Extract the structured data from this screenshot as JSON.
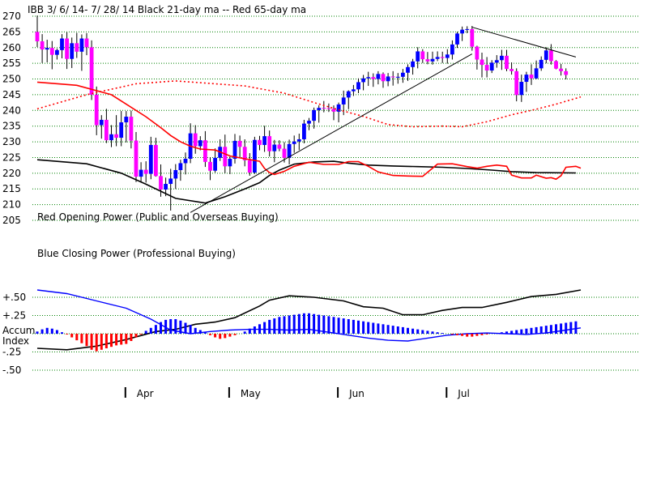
{
  "chart_data": {
    "type": "candlestick",
    "title": "IBB   3/ 6/ 14- 7/ 28/ 14     Black 21-day ma --  Red 65-day ma",
    "price_axis": {
      "ylim": [
        205,
        270
      ],
      "ticks": [
        "270",
        "265",
        "260",
        "255",
        "250",
        "245",
        "240",
        "235",
        "230",
        "225",
        "220",
        "215",
        "210",
        "205"
      ],
      "grid": true
    },
    "indicator_axis": {
      "ticks": [
        {
          "label": "+.50",
          "value": 0.5
        },
        {
          "label": "+.25",
          "value": 0.25
        },
        {
          "label": "-.25",
          "value": -0.25
        },
        {
          "label": "-.50",
          "value": -0.5
        }
      ],
      "zero_label_1": "Accum",
      "zero_label_2": "Index"
    },
    "x_axis": {
      "months": [
        "Apr",
        "May",
        "Jun",
        "Jul"
      ],
      "month_start_index": [
        18,
        39,
        61,
        83
      ]
    },
    "annotations": {
      "red_power": "Red Opening Power (Public and Overseas Buying)",
      "blue_power": "Blue Closing Power (Professional Buying)"
    },
    "colors": {
      "up": "#0000ff",
      "down": "#ff00ff",
      "ma21": "#000000",
      "ma65": "#ff0000",
      "acc_pos": "#0000ff",
      "acc_neg": "#ff0000",
      "grid": "#008000"
    },
    "ohlc": [
      [
        265.0,
        270.2,
        260.2,
        262.0
      ],
      [
        262.0,
        264.3,
        255.1,
        259.4
      ],
      [
        259.4,
        262.5,
        255.3,
        259.9
      ],
      [
        259.9,
        262.1,
        253.1,
        257.7
      ],
      [
        257.7,
        259.7,
        256.2,
        259.2
      ],
      [
        259.2,
        264.3,
        256.6,
        262.9
      ],
      [
        262.9,
        264.9,
        253.2,
        256.4
      ],
      [
        256.4,
        263.2,
        253.5,
        261.4
      ],
      [
        261.4,
        264.7,
        256.7,
        258.7
      ],
      [
        258.7,
        264.2,
        252.6,
        262.9
      ],
      [
        262.9,
        264.6,
        257.6,
        260.1
      ],
      [
        260.1,
        262.3,
        243.3,
        245.0
      ],
      [
        245.0,
        247.6,
        232.1,
        235.3
      ],
      [
        235.3,
        238.5,
        231.0,
        237.0
      ],
      [
        237.0,
        240.5,
        229.6,
        230.5
      ],
      [
        230.5,
        235.3,
        228.3,
        232.4
      ],
      [
        232.4,
        238.5,
        228.6,
        231.3
      ],
      [
        231.3,
        239.8,
        228.6,
        236.2
      ],
      [
        236.2,
        239.8,
        229.8,
        238.0
      ],
      [
        238.0,
        239.9,
        227.9,
        230.4
      ],
      [
        230.4,
        233.1,
        217.2,
        218.9
      ],
      [
        218.9,
        223.5,
        217.0,
        221.1
      ],
      [
        221.1,
        223.8,
        217.0,
        219.8
      ],
      [
        219.8,
        231.6,
        218.1,
        229.0
      ],
      [
        229.0,
        231.3,
        218.9,
        219.1
      ],
      [
        219.1,
        222.8,
        212.5,
        214.8
      ],
      [
        214.8,
        218.6,
        212.7,
        216.6
      ],
      [
        216.6,
        221.4,
        208.1,
        218.3
      ],
      [
        218.3,
        222.9,
        215.0,
        221.0
      ],
      [
        221.0,
        224.3,
        217.6,
        223.2
      ],
      [
        223.2,
        226.6,
        219.6,
        224.6
      ],
      [
        224.6,
        235.9,
        223.2,
        232.7
      ],
      [
        232.7,
        235.3,
        226.2,
        228.6
      ],
      [
        228.6,
        231.8,
        227.3,
        230.5
      ],
      [
        230.5,
        233.4,
        222.0,
        223.6
      ],
      [
        223.6,
        225.1,
        217.8,
        220.8
      ],
      [
        220.8,
        227.9,
        220.2,
        224.9
      ],
      [
        224.9,
        230.8,
        223.9,
        228.4
      ],
      [
        228.4,
        232.3,
        220.0,
        222.2
      ],
      [
        222.2,
        225.3,
        219.7,
        224.6
      ],
      [
        224.6,
        232.5,
        223.1,
        230.3
      ],
      [
        230.3,
        232.0,
        225.0,
        228.4
      ],
      [
        228.4,
        230.8,
        222.2,
        224.1
      ],
      [
        224.1,
        226.4,
        219.2,
        220.2
      ],
      [
        220.2,
        231.6,
        219.8,
        230.6
      ],
      [
        230.6,
        231.9,
        227.3,
        229.0
      ],
      [
        229.0,
        235.1,
        226.8,
        231.8
      ],
      [
        231.8,
        233.6,
        225.3,
        227.0
      ],
      [
        227.0,
        230.6,
        223.5,
        229.1
      ],
      [
        229.1,
        230.5,
        227.0,
        227.8
      ],
      [
        227.8,
        229.9,
        223.4,
        224.9
      ],
      [
        224.9,
        230.7,
        222.8,
        229.3
      ],
      [
        229.3,
        232.0,
        226.5,
        230.1
      ],
      [
        230.1,
        232.6,
        227.4,
        230.8
      ],
      [
        230.8,
        237.0,
        229.5,
        235.8
      ],
      [
        235.8,
        237.6,
        233.7,
        236.7
      ],
      [
        236.7,
        240.9,
        234.2,
        240.1
      ],
      [
        240.1,
        241.6,
        236.1,
        240.8
      ],
      [
        240.8,
        243.0,
        239.4,
        240.7
      ],
      [
        240.7,
        242.2,
        239.5,
        240.5
      ],
      [
        240.5,
        241.6,
        236.9,
        239.6
      ],
      [
        239.6,
        242.5,
        236.2,
        241.9
      ],
      [
        241.9,
        246.3,
        238.5,
        244.1
      ],
      [
        244.1,
        246.4,
        240.4,
        246.1
      ],
      [
        246.1,
        248.1,
        244.6,
        246.7
      ],
      [
        246.7,
        250.2,
        245.5,
        249.0
      ],
      [
        249.0,
        251.3,
        246.4,
        250.2
      ],
      [
        250.2,
        252.3,
        247.8,
        250.6
      ],
      [
        250.6,
        251.8,
        247.5,
        250.0
      ],
      [
        250.0,
        252.5,
        248.3,
        251.6
      ],
      [
        251.6,
        252.1,
        247.2,
        249.3
      ],
      [
        249.3,
        251.9,
        247.7,
        250.8
      ],
      [
        250.8,
        252.5,
        247.9,
        250.7
      ],
      [
        250.7,
        251.9,
        248.5,
        250.7
      ],
      [
        250.7,
        253.2,
        248.8,
        252.0
      ],
      [
        252.0,
        254.7,
        249.4,
        253.8
      ],
      [
        253.8,
        256.4,
        251.4,
        255.6
      ],
      [
        255.6,
        260.1,
        253.4,
        258.8
      ],
      [
        258.8,
        259.5,
        255.1,
        256.3
      ],
      [
        256.3,
        258.6,
        254.7,
        255.6
      ],
      [
        255.6,
        258.7,
        254.6,
        256.4
      ],
      [
        256.4,
        258.8,
        255.7,
        257.0
      ],
      [
        257.0,
        258.7,
        255.1,
        256.7
      ],
      [
        256.7,
        259.5,
        254.9,
        257.8
      ],
      [
        257.8,
        262.3,
        256.2,
        261.0
      ],
      [
        261.0,
        265.0,
        259.9,
        264.5
      ],
      [
        264.5,
        266.7,
        262.1,
        265.7
      ],
      [
        265.7,
        266.8,
        264.6,
        265.9
      ],
      [
        265.9,
        266.9,
        259.0,
        260.3
      ],
      [
        260.3,
        260.6,
        253.0,
        256.2
      ],
      [
        256.2,
        258.4,
        250.5,
        254.5
      ],
      [
        254.5,
        257.0,
        250.5,
        252.7
      ],
      [
        252.7,
        256.0,
        251.9,
        255.2
      ],
      [
        255.2,
        257.6,
        253.6,
        256.0
      ],
      [
        256.0,
        259.3,
        252.9,
        257.4
      ],
      [
        257.4,
        259.3,
        252.5,
        253.2
      ],
      [
        253.2,
        255.3,
        251.4,
        252.5
      ],
      [
        252.5,
        253.4,
        242.9,
        244.9
      ],
      [
        244.9,
        251.4,
        242.7,
        249.1
      ],
      [
        249.1,
        252.3,
        245.9,
        251.4
      ],
      [
        251.4,
        254.7,
        248.1,
        250.2
      ],
      [
        250.2,
        255.9,
        250.0,
        253.4
      ],
      [
        253.4,
        257.2,
        252.6,
        256.1
      ],
      [
        256.1,
        260.1,
        255.0,
        259.1
      ],
      [
        259.1,
        261.1,
        254.6,
        255.7
      ],
      [
        255.7,
        256.0,
        253.1,
        253.3
      ],
      [
        253.3,
        254.8,
        251.1,
        252.5
      ],
      [
        252.5,
        253.4,
        249.9,
        251.3
      ]
    ],
    "ma21": [
      [
        0,
        224.3
      ],
      [
        10,
        223.0
      ],
      [
        17,
        220.0
      ],
      [
        22,
        216.5
      ],
      [
        28,
        212.0
      ],
      [
        34,
        210.5
      ],
      [
        38,
        212.5
      ],
      [
        42,
        215.0
      ],
      [
        45,
        217.0
      ],
      [
        47,
        219.3
      ],
      [
        49,
        221.0
      ],
      [
        52,
        222.9
      ],
      [
        56,
        223.6
      ],
      [
        60,
        223.8
      ],
      [
        63,
        223.2
      ],
      [
        67,
        222.6
      ],
      [
        72,
        222.3
      ],
      [
        77,
        222.1
      ],
      [
        82,
        221.9
      ],
      [
        87,
        221.5
      ],
      [
        92,
        221.0
      ],
      [
        96,
        220.5
      ],
      [
        101,
        220.2
      ],
      [
        109,
        220.1
      ]
    ],
    "ma65": [
      [
        0,
        249.0
      ],
      [
        8,
        248.0
      ],
      [
        15,
        245.0
      ],
      [
        22,
        238.0
      ],
      [
        25,
        234.5
      ],
      [
        27,
        232.0
      ],
      [
        29,
        230.0
      ],
      [
        31,
        228.6
      ],
      [
        33,
        227.7
      ],
      [
        36,
        227.4
      ],
      [
        39,
        225.5
      ],
      [
        42,
        224.6
      ],
      [
        45,
        223.8
      ],
      [
        46,
        221.5
      ],
      [
        47,
        220.2
      ],
      [
        48,
        219.6
      ],
      [
        50,
        220.6
      ],
      [
        52,
        222.2
      ],
      [
        55,
        223.5
      ],
      [
        58,
        222.8
      ],
      [
        61,
        222.8
      ],
      [
        63,
        223.7
      ],
      [
        65,
        223.7
      ],
      [
        67,
        222.2
      ],
      [
        69,
        220.4
      ],
      [
        72,
        219.3
      ],
      [
        75,
        219.1
      ],
      [
        78,
        219.0
      ],
      [
        81,
        222.9
      ],
      [
        84,
        223.0
      ],
      [
        87,
        222.1
      ],
      [
        89,
        221.6
      ],
      [
        91,
        222.2
      ],
      [
        93,
        222.6
      ],
      [
        95,
        222.2
      ],
      [
        96,
        219.4
      ],
      [
        98,
        218.5
      ],
      [
        100,
        218.5
      ],
      [
        101,
        219.4
      ],
      [
        103,
        218.4
      ],
      [
        104,
        218.6
      ],
      [
        105,
        218.1
      ],
      [
        106,
        219.2
      ],
      [
        107,
        221.9
      ],
      [
        109,
        222.2
      ],
      [
        110,
        221.6
      ]
    ],
    "ma65_dotted": [
      [
        0,
        240.5
      ],
      [
        10,
        245.0
      ],
      [
        20,
        248.5
      ],
      [
        28,
        249.4
      ],
      [
        35,
        248.6
      ],
      [
        42,
        247.8
      ],
      [
        50,
        245.5
      ],
      [
        56,
        242.5
      ],
      [
        61,
        240.2
      ],
      [
        66,
        238.1
      ],
      [
        71,
        235.5
      ],
      [
        76,
        234.8
      ],
      [
        82,
        235.0
      ],
      [
        86,
        234.8
      ],
      [
        91,
        236.4
      ],
      [
        96,
        238.6
      ],
      [
        101,
        240.4
      ],
      [
        105,
        242.0
      ],
      [
        110,
        244.3
      ]
    ],
    "red_power": [
      [
        0,
        -0.2
      ],
      [
        6,
        -0.22
      ],
      [
        12,
        -0.17
      ],
      [
        18,
        -0.08
      ],
      [
        24,
        0.03
      ],
      [
        28,
        0.06
      ],
      [
        32,
        0.13
      ],
      [
        36,
        0.16
      ],
      [
        40,
        0.22
      ],
      [
        45,
        0.38
      ],
      [
        47,
        0.46
      ],
      [
        51,
        0.52
      ],
      [
        56,
        0.5
      ],
      [
        62,
        0.45
      ],
      [
        66,
        0.37
      ],
      [
        70,
        0.35
      ],
      [
        74,
        0.26
      ],
      [
        78,
        0.26
      ],
      [
        82,
        0.32
      ],
      [
        86,
        0.36
      ],
      [
        90,
        0.36
      ],
      [
        95,
        0.43
      ],
      [
        100,
        0.51
      ],
      [
        105,
        0.54
      ],
      [
        110,
        0.6
      ]
    ],
    "blue_power_osc": [
      [
        0,
        0.6
      ],
      [
        6,
        0.55
      ],
      [
        12,
        0.45
      ],
      [
        18,
        0.35
      ],
      [
        23,
        0.2
      ],
      [
        27,
        0.05
      ],
      [
        31,
        0.0
      ],
      [
        35,
        0.03
      ],
      [
        39,
        0.05
      ],
      [
        43,
        0.06
      ],
      [
        47,
        0.06
      ],
      [
        51,
        0.05
      ],
      [
        55,
        0.06
      ],
      [
        59,
        0.02
      ],
      [
        63,
        -0.02
      ],
      [
        67,
        -0.06
      ],
      [
        71,
        -0.09
      ],
      [
        75,
        -0.1
      ],
      [
        79,
        -0.06
      ],
      [
        83,
        -0.02
      ],
      [
        87,
        0.0
      ],
      [
        91,
        0.01
      ],
      [
        95,
        0.0
      ],
      [
        99,
        -0.01
      ],
      [
        103,
        0.01
      ],
      [
        107,
        0.05
      ],
      [
        110,
        0.08
      ]
    ],
    "accum_index": [
      0.03,
      0.06,
      0.08,
      0.07,
      0.05,
      0.02,
      -0.01,
      -0.05,
      -0.09,
      -0.13,
      -0.17,
      -0.22,
      -0.24,
      -0.22,
      -0.2,
      -0.18,
      -0.16,
      -0.15,
      -0.14,
      -0.1,
      -0.05,
      -0.01,
      0.04,
      0.08,
      0.12,
      0.16,
      0.19,
      0.2,
      0.2,
      0.18,
      0.15,
      0.12,
      0.08,
      0.05,
      0.02,
      -0.02,
      -0.05,
      -0.07,
      -0.06,
      -0.04,
      -0.02,
      0.0,
      0.03,
      0.07,
      0.1,
      0.13,
      0.16,
      0.19,
      0.21,
      0.23,
      0.24,
      0.25,
      0.26,
      0.27,
      0.28,
      0.28,
      0.27,
      0.26,
      0.25,
      0.24,
      0.23,
      0.22,
      0.21,
      0.2,
      0.19,
      0.18,
      0.17,
      0.16,
      0.15,
      0.14,
      0.13,
      0.12,
      0.11,
      0.1,
      0.09,
      0.08,
      0.07,
      0.06,
      0.05,
      0.04,
      0.03,
      0.02,
      0.01,
      0.0,
      -0.01,
      -0.02,
      -0.03,
      -0.04,
      -0.04,
      -0.03,
      -0.02,
      -0.01,
      0.0,
      0.01,
      0.02,
      0.03,
      0.04,
      0.05,
      0.06,
      0.07,
      0.08,
      0.09,
      0.1,
      0.11,
      0.12,
      0.13,
      0.14,
      0.15,
      0.16,
      0.17
    ],
    "trendlines": [
      {
        "from": [
          31,
          207.5
        ],
        "to": [
          88,
          258.0
        ]
      },
      {
        "from": [
          88,
          266.5
        ],
        "to": [
          109,
          257.0
        ]
      }
    ]
  }
}
